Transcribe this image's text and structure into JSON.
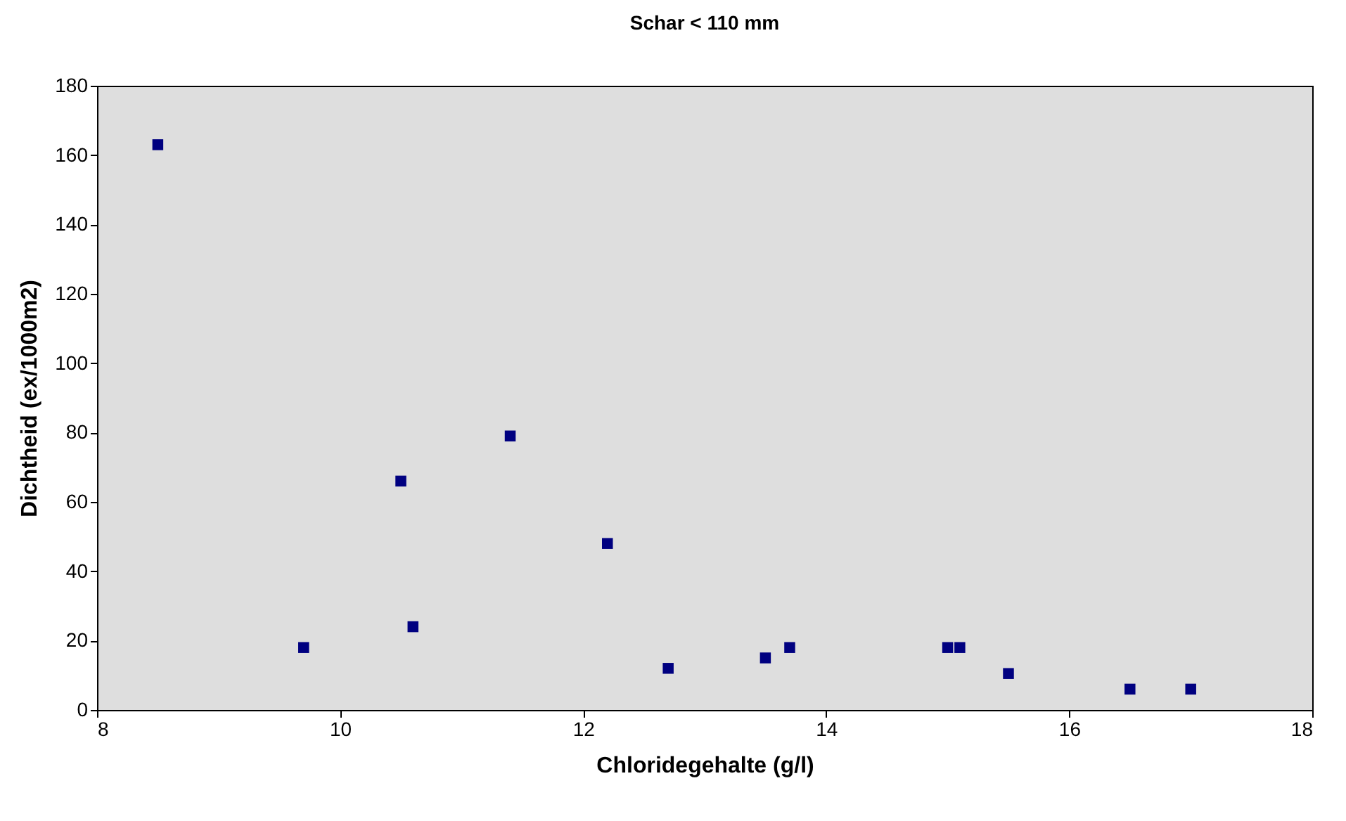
{
  "chart_data": {
    "type": "scatter",
    "title": "Schar < 110 mm",
    "xlabel": "Chloridegehalte (g/l)",
    "ylabel": "Dichtheid (ex/1000m2)",
    "x": [
      8.5,
      9.7,
      10.5,
      10.6,
      11.4,
      12.2,
      12.7,
      13.5,
      13.7,
      15,
      15.1,
      15.5,
      16.5,
      17
    ],
    "series": [
      {
        "color": "#000080",
        "values": [
          163,
          18,
          66,
          24,
          79,
          48,
          12,
          15,
          18,
          18,
          18,
          10.5,
          6,
          6
        ]
      }
    ],
    "xlim": [
      8,
      18
    ],
    "xticks": [
      8,
      10,
      12,
      14,
      16,
      18
    ],
    "ylim": [
      0,
      180
    ],
    "yticks": [
      0,
      20,
      40,
      60,
      80,
      100,
      120,
      140,
      160,
      180
    ],
    "grid": false,
    "marker": "square"
  }
}
